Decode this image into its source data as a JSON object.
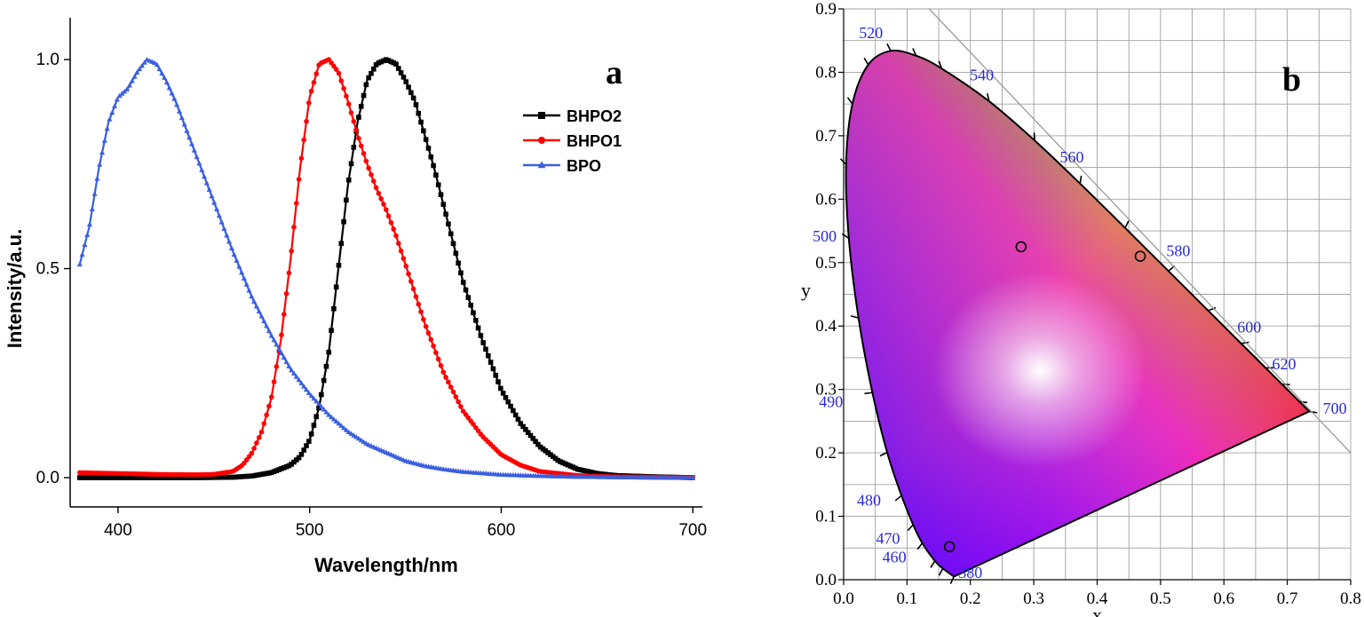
{
  "chart_data": [
    {
      "type": "line",
      "panel_label": "a",
      "xlabel": "Wavelength/nm",
      "ylabel": "Intensity/a.u.",
      "xlim": [
        375,
        705
      ],
      "ylim": [
        -0.07,
        1.1
      ],
      "x_ticks": [
        400,
        500,
        600,
        700
      ],
      "y_ticks": [
        0.0,
        0.5,
        1.0
      ],
      "y_tick_labels": [
        "0.0",
        "0.5",
        "1.0"
      ],
      "legend_position": "top-right",
      "grid": false,
      "series": [
        {
          "name": "BHPO2",
          "color": "#000000",
          "marker": "square",
          "x": [
            380,
            400,
            420,
            440,
            460,
            470,
            480,
            490,
            495,
            500,
            505,
            510,
            515,
            520,
            525,
            530,
            535,
            540,
            545,
            550,
            555,
            560,
            565,
            570,
            575,
            580,
            590,
            600,
            610,
            620,
            630,
            640,
            650,
            660,
            680,
            700
          ],
          "y": [
            0.0,
            0.0,
            0.0,
            0.0,
            0.001,
            0.004,
            0.012,
            0.03,
            0.05,
            0.09,
            0.17,
            0.3,
            0.5,
            0.7,
            0.85,
            0.95,
            0.99,
            1.0,
            0.99,
            0.95,
            0.9,
            0.82,
            0.74,
            0.65,
            0.56,
            0.47,
            0.33,
            0.21,
            0.13,
            0.075,
            0.04,
            0.02,
            0.01,
            0.005,
            0.002,
            0.0
          ]
        },
        {
          "name": "BHPO1",
          "color": "#ff0000",
          "marker": "circle",
          "x": [
            380,
            400,
            420,
            440,
            450,
            460,
            465,
            470,
            475,
            480,
            485,
            490,
            495,
            500,
            505,
            510,
            515,
            520,
            525,
            530,
            535,
            540,
            545,
            550,
            555,
            560,
            570,
            580,
            590,
            600,
            610,
            620,
            640,
            660,
            680,
            700
          ],
          "y": [
            0.012,
            0.01,
            0.008,
            0.007,
            0.008,
            0.015,
            0.03,
            0.06,
            0.11,
            0.19,
            0.33,
            0.52,
            0.74,
            0.91,
            0.99,
            1.0,
            0.97,
            0.9,
            0.82,
            0.75,
            0.69,
            0.64,
            0.58,
            0.51,
            0.44,
            0.37,
            0.25,
            0.16,
            0.1,
            0.055,
            0.03,
            0.015,
            0.005,
            0.002,
            0.001,
            0.0
          ]
        },
        {
          "name": "BPO",
          "color": "#3a5fe0",
          "marker": "triangle",
          "x": [
            380,
            385,
            390,
            395,
            400,
            405,
            410,
            415,
            420,
            425,
            430,
            440,
            450,
            460,
            470,
            480,
            490,
            500,
            510,
            520,
            530,
            540,
            550,
            560,
            570,
            580,
            600,
            620,
            640,
            660,
            680,
            700
          ],
          "y": [
            0.51,
            0.6,
            0.74,
            0.85,
            0.91,
            0.93,
            0.97,
            1.0,
            0.99,
            0.95,
            0.9,
            0.78,
            0.66,
            0.54,
            0.43,
            0.34,
            0.26,
            0.2,
            0.15,
            0.11,
            0.08,
            0.06,
            0.04,
            0.028,
            0.02,
            0.014,
            0.007,
            0.004,
            0.002,
            0.001,
            0.0,
            0.0
          ]
        }
      ]
    },
    {
      "type": "scatter",
      "panel_label": "b",
      "xlabel": "x",
      "ylabel": "y",
      "xlim": [
        0.0,
        0.8
      ],
      "ylim": [
        0.0,
        0.9
      ],
      "x_ticks": [
        0.0,
        0.1,
        0.2,
        0.3,
        0.4,
        0.5,
        0.6,
        0.7,
        0.8
      ],
      "y_ticks": [
        0.0,
        0.1,
        0.2,
        0.3,
        0.4,
        0.5,
        0.6,
        0.7,
        0.8,
        0.9
      ],
      "x_tick_labels": [
        "0.0",
        "0.1",
        "0.2",
        "0.3",
        "0.4",
        "0.5",
        "0.6",
        "0.7",
        "0.8"
      ],
      "y_tick_labels": [
        "0.0",
        "0.1",
        "0.2",
        "0.3",
        "0.4",
        "0.5",
        "0.6",
        "0.7",
        "0.8",
        "0.9"
      ],
      "grid": true,
      "locus": [
        {
          "nm": 380,
          "x": 0.1741,
          "y": 0.005
        },
        {
          "nm": 450,
          "x": 0.1566,
          "y": 0.0177
        },
        {
          "nm": 460,
          "x": 0.144,
          "y": 0.0297
        },
        {
          "nm": 470,
          "x": 0.1241,
          "y": 0.0578
        },
        {
          "nm": 475,
          "x": 0.1096,
          "y": 0.0868
        },
        {
          "nm": 480,
          "x": 0.0913,
          "y": 0.1327
        },
        {
          "nm": 485,
          "x": 0.0687,
          "y": 0.2007
        },
        {
          "nm": 490,
          "x": 0.0454,
          "y": 0.295
        },
        {
          "nm": 495,
          "x": 0.0235,
          "y": 0.4127
        },
        {
          "nm": 500,
          "x": 0.0082,
          "y": 0.5384
        },
        {
          "nm": 505,
          "x": 0.0039,
          "y": 0.6548
        },
        {
          "nm": 510,
          "x": 0.0139,
          "y": 0.7502
        },
        {
          "nm": 515,
          "x": 0.0389,
          "y": 0.812
        },
        {
          "nm": 520,
          "x": 0.0743,
          "y": 0.8338
        },
        {
          "nm": 525,
          "x": 0.1142,
          "y": 0.8262
        },
        {
          "nm": 530,
          "x": 0.1547,
          "y": 0.8059
        },
        {
          "nm": 540,
          "x": 0.2296,
          "y": 0.7543
        },
        {
          "nm": 550,
          "x": 0.3016,
          "y": 0.6923
        },
        {
          "nm": 560,
          "x": 0.3731,
          "y": 0.6245
        },
        {
          "nm": 570,
          "x": 0.4441,
          "y": 0.5547
        },
        {
          "nm": 580,
          "x": 0.5125,
          "y": 0.4866
        },
        {
          "nm": 590,
          "x": 0.5752,
          "y": 0.4242
        },
        {
          "nm": 600,
          "x": 0.627,
          "y": 0.3725
        },
        {
          "nm": 610,
          "x": 0.6658,
          "y": 0.334
        },
        {
          "nm": 620,
          "x": 0.6915,
          "y": 0.3083
        },
        {
          "nm": 640,
          "x": 0.719,
          "y": 0.2809
        },
        {
          "nm": 700,
          "x": 0.7347,
          "y": 0.2653
        }
      ],
      "wavelength_labels": [
        {
          "text": "520",
          "x": 0.043,
          "y": 0.854
        },
        {
          "text": "540",
          "x": 0.218,
          "y": 0.787
        },
        {
          "text": "560",
          "x": 0.36,
          "y": 0.658
        },
        {
          "text": "580",
          "x": 0.528,
          "y": 0.51
        },
        {
          "text": "600",
          "x": 0.64,
          "y": 0.39
        },
        {
          "text": "620",
          "x": 0.695,
          "y": 0.332
        },
        {
          "text": "700",
          "x": 0.775,
          "y": 0.262
        },
        {
          "text": "500",
          "x": -0.03,
          "y": 0.533
        },
        {
          "text": "490",
          "x": -0.02,
          "y": 0.272
        },
        {
          "text": "480",
          "x": 0.04,
          "y": 0.117
        },
        {
          "text": "470",
          "x": 0.07,
          "y": 0.057
        },
        {
          "text": "460",
          "x": 0.08,
          "y": 0.027
        },
        {
          "text": "380",
          "x": 0.2,
          "y": 0.003
        }
      ],
      "points": [
        {
          "x": 0.28,
          "y": 0.525
        },
        {
          "x": 0.468,
          "y": 0.51
        },
        {
          "x": 0.167,
          "y": 0.052
        }
      ],
      "colors": {
        "wavelength_label": "#2b2bd6",
        "grid": "#a0a0a0"
      }
    }
  ]
}
